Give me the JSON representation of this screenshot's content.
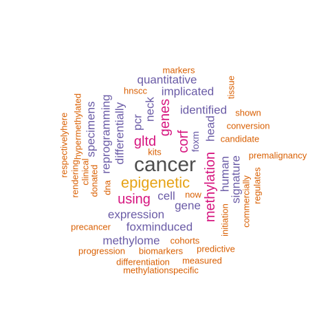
{
  "colors": {
    "dark": "#4d4d4d",
    "gold": "#e6a317",
    "magenta": "#d6157f",
    "purple": "#6a5ba6",
    "orange": "#d95f02"
  },
  "words": [
    {
      "text": "cancer",
      "color": "dark"
    },
    {
      "text": "epigenetic",
      "color": "gold"
    },
    {
      "text": "methylation",
      "color": "magenta"
    },
    {
      "text": "using",
      "color": "magenta"
    },
    {
      "text": "gltd",
      "color": "magenta"
    },
    {
      "text": "genes",
      "color": "magenta"
    },
    {
      "text": "corf",
      "color": "magenta"
    },
    {
      "text": "quantitative",
      "color": "purple"
    },
    {
      "text": "implicated",
      "color": "purple"
    },
    {
      "text": "identified",
      "color": "purple"
    },
    {
      "text": "expression",
      "color": "purple"
    },
    {
      "text": "foxminduced",
      "color": "purple"
    },
    {
      "text": "methylome",
      "color": "purple"
    },
    {
      "text": "cell",
      "color": "purple"
    },
    {
      "text": "gene",
      "color": "purple"
    },
    {
      "text": "human",
      "color": "purple"
    },
    {
      "text": "signature",
      "color": "purple"
    },
    {
      "text": "head",
      "color": "purple"
    },
    {
      "text": "foxm",
      "color": "purple"
    },
    {
      "text": "pcr",
      "color": "purple"
    },
    {
      "text": "neck",
      "color": "purple"
    },
    {
      "text": "specimens",
      "color": "purple"
    },
    {
      "text": "reprogramming",
      "color": "purple"
    },
    {
      "text": "differentially",
      "color": "purple"
    },
    {
      "text": "markers",
      "color": "orange"
    },
    {
      "text": "hnscc",
      "color": "orange"
    },
    {
      "text": "tissue",
      "color": "orange"
    },
    {
      "text": "shown",
      "color": "orange"
    },
    {
      "text": "conversion",
      "color": "orange"
    },
    {
      "text": "candidate",
      "color": "orange"
    },
    {
      "text": "premalignancy",
      "color": "orange"
    },
    {
      "text": "kits",
      "color": "orange"
    },
    {
      "text": "now",
      "color": "orange"
    },
    {
      "text": "precancer",
      "color": "orange"
    },
    {
      "text": "cohorts",
      "color": "orange"
    },
    {
      "text": "predictive",
      "color": "orange"
    },
    {
      "text": "progression",
      "color": "orange"
    },
    {
      "text": "biomarkers",
      "color": "orange"
    },
    {
      "text": "differentiation",
      "color": "orange"
    },
    {
      "text": "measured",
      "color": "orange"
    },
    {
      "text": "methylationspecific",
      "color": "orange"
    },
    {
      "text": "hypermethylated",
      "color": "orange"
    },
    {
      "text": "respectivelyhere",
      "color": "orange"
    },
    {
      "text": "rendering",
      "color": "orange"
    },
    {
      "text": "clinical",
      "color": "orange"
    },
    {
      "text": "donated",
      "color": "orange"
    },
    {
      "text": "dna",
      "color": "orange"
    },
    {
      "text": "initiation",
      "color": "orange"
    },
    {
      "text": "commercially",
      "color": "orange"
    },
    {
      "text": "regulates",
      "color": "orange"
    }
  ]
}
